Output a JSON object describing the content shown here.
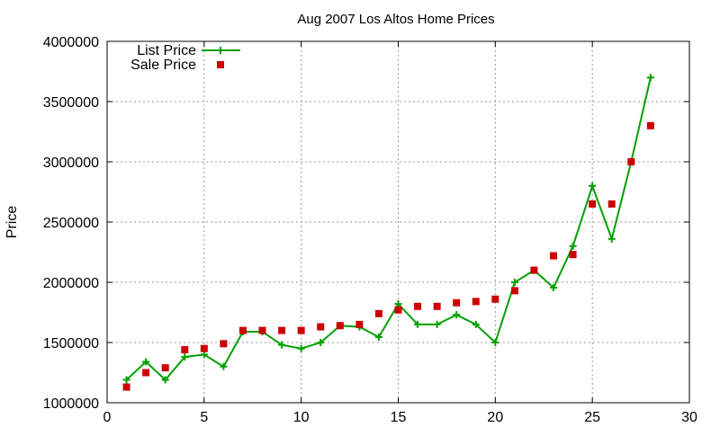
{
  "chart_data": {
    "type": "line",
    "title": "Aug 2007 Los Altos Home Prices",
    "xlabel": "",
    "ylabel": "Price",
    "xlim": [
      0,
      30
    ],
    "ylim": [
      1000000,
      4000000
    ],
    "xticks": [
      "0",
      "5",
      "10",
      "15",
      "20",
      "25",
      "30"
    ],
    "yticks": [
      "1000000",
      "1500000",
      "2000000",
      "2500000",
      "3000000",
      "3500000",
      "4000000"
    ],
    "grid": true,
    "legend_position": "top-left",
    "x": [
      1,
      2,
      3,
      4,
      5,
      6,
      7,
      8,
      9,
      10,
      11,
      12,
      13,
      14,
      15,
      16,
      17,
      18,
      19,
      20,
      21,
      22,
      23,
      24,
      25,
      26,
      27,
      28
    ],
    "series": [
      {
        "name": "List Price",
        "style": "lines+points",
        "marker": "plus",
        "color": "#00a000",
        "values": [
          1190000,
          1340000,
          1190000,
          1380000,
          1400000,
          1300000,
          1590000,
          1590000,
          1480000,
          1450000,
          1500000,
          1640000,
          1630000,
          1545000,
          1820000,
          1650000,
          1650000,
          1730000,
          1650000,
          1500000,
          2000000,
          2100000,
          1955000,
          2300000,
          2800000,
          2360000,
          3000000,
          3700000
        ]
      },
      {
        "name": "Sale Price",
        "style": "points",
        "marker": "square",
        "color": "#cc0000",
        "values": [
          1130000,
          1250000,
          1290000,
          1440000,
          1450000,
          1490000,
          1600000,
          1600000,
          1600000,
          1600000,
          1630000,
          1640000,
          1650000,
          1740000,
          1770000,
          1800000,
          1800000,
          1830000,
          1840000,
          1860000,
          1930000,
          2100000,
          2220000,
          2230000,
          2650000,
          2650000,
          3000000,
          3300000
        ]
      }
    ]
  }
}
